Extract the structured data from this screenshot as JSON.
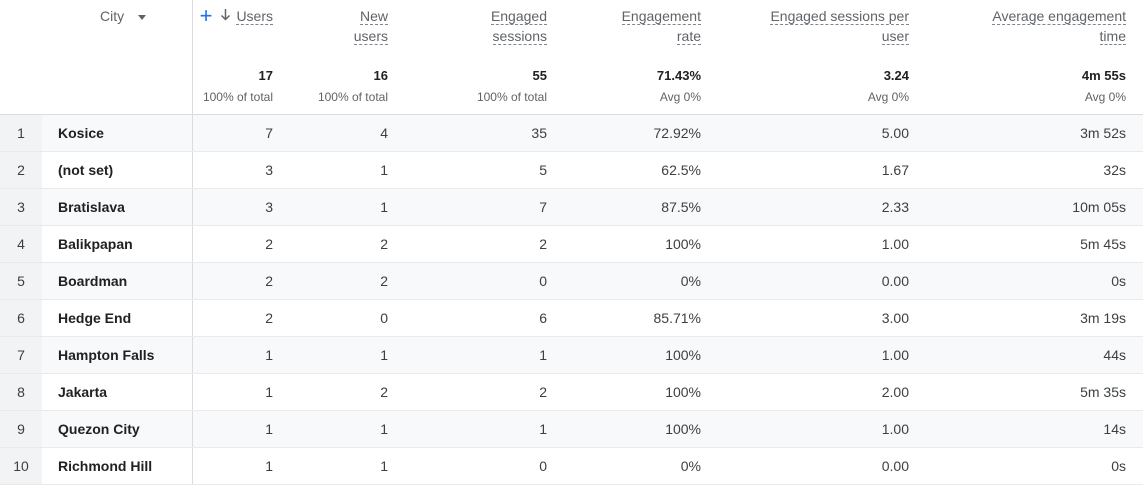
{
  "header": {
    "city_label": "City",
    "columns": {
      "users": {
        "label": "Users",
        "total": "17",
        "sub": "100% of total"
      },
      "new_users": {
        "label_line1": "New",
        "label_line2": "users",
        "total": "16",
        "sub": "100% of total"
      },
      "engaged_sessions": {
        "label_line1": "Engaged",
        "label_line2": "sessions",
        "total": "55",
        "sub": "100% of total"
      },
      "engagement_rate": {
        "label_line1": "Engagement",
        "label_line2": "rate",
        "total": "71.43%",
        "sub": "Avg 0%"
      },
      "engaged_per_user": {
        "label_line1": "Engaged sessions per",
        "label_line2": "user",
        "total": "3.24",
        "sub": "Avg 0%"
      },
      "avg_engagement_time": {
        "label_line1": "Average engagement",
        "label_line2": "time",
        "total": "4m 55s",
        "sub": "Avg 0%"
      }
    }
  },
  "icons": {
    "sort": "arrow-down-icon",
    "dropdown": "caret-down-icon",
    "add": "plus-icon",
    "accent_color": "#1a73e8"
  },
  "rows": [
    {
      "idx": "1",
      "city": "Kosice",
      "users": "7",
      "new_users": "4",
      "engaged_sessions": "35",
      "engagement_rate": "72.92%",
      "per_user": "5.00",
      "avg_time": "3m 52s"
    },
    {
      "idx": "2",
      "city": "(not set)",
      "users": "3",
      "new_users": "1",
      "engaged_sessions": "5",
      "engagement_rate": "62.5%",
      "per_user": "1.67",
      "avg_time": "32s"
    },
    {
      "idx": "3",
      "city": "Bratislava",
      "users": "3",
      "new_users": "1",
      "engaged_sessions": "7",
      "engagement_rate": "87.5%",
      "per_user": "2.33",
      "avg_time": "10m 05s"
    },
    {
      "idx": "4",
      "city": "Balikpapan",
      "users": "2",
      "new_users": "2",
      "engaged_sessions": "2",
      "engagement_rate": "100%",
      "per_user": "1.00",
      "avg_time": "5m 45s"
    },
    {
      "idx": "5",
      "city": "Boardman",
      "users": "2",
      "new_users": "2",
      "engaged_sessions": "0",
      "engagement_rate": "0%",
      "per_user": "0.00",
      "avg_time": "0s"
    },
    {
      "idx": "6",
      "city": "Hedge End",
      "users": "2",
      "new_users": "0",
      "engaged_sessions": "6",
      "engagement_rate": "85.71%",
      "per_user": "3.00",
      "avg_time": "3m 19s"
    },
    {
      "idx": "7",
      "city": "Hampton Falls",
      "users": "1",
      "new_users": "1",
      "engaged_sessions": "1",
      "engagement_rate": "100%",
      "per_user": "1.00",
      "avg_time": "44s"
    },
    {
      "idx": "8",
      "city": "Jakarta",
      "users": "1",
      "new_users": "2",
      "engaged_sessions": "2",
      "engagement_rate": "100%",
      "per_user": "2.00",
      "avg_time": "5m 35s"
    },
    {
      "idx": "9",
      "city": "Quezon City",
      "users": "1",
      "new_users": "1",
      "engaged_sessions": "1",
      "engagement_rate": "100%",
      "per_user": "1.00",
      "avg_time": "14s"
    },
    {
      "idx": "10",
      "city": "Richmond Hill",
      "users": "1",
      "new_users": "1",
      "engaged_sessions": "0",
      "engagement_rate": "0%",
      "per_user": "0.00",
      "avg_time": "0s"
    }
  ]
}
